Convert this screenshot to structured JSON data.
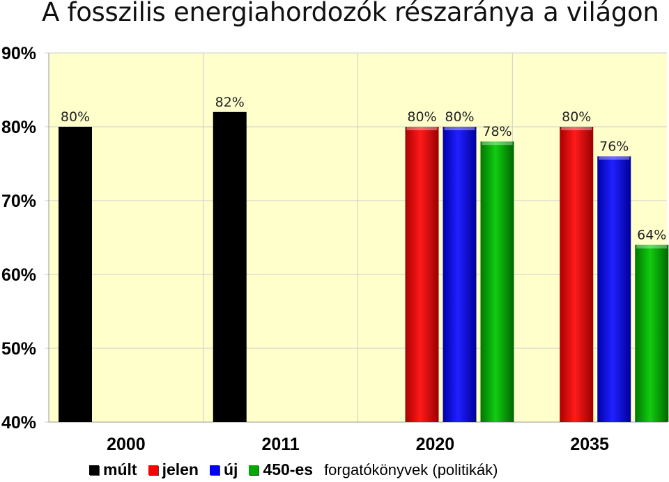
{
  "title": "A fosszilis energiahordozók részaránya a világon",
  "colors": {
    "plot_bg": "#FFFFCC",
    "mult": "#000000",
    "jelen": "#FF0000",
    "uj": "#0000FF",
    "450-es": "#00AA00",
    "gridline": "#CCCCCC"
  },
  "chart_data": {
    "type": "bar",
    "categories": [
      "2000",
      "2011",
      "2020",
      "2035"
    ],
    "series": [
      {
        "name": "múlt",
        "color_key": "mult",
        "values": [
          80,
          82,
          null,
          null
        ]
      },
      {
        "name": "jelen",
        "color_key": "jelen",
        "values": [
          null,
          null,
          80,
          80
        ]
      },
      {
        "name": "új",
        "color_key": "uj",
        "values": [
          null,
          null,
          80,
          76
        ]
      },
      {
        "name": "450-es",
        "color_key": "450-es",
        "values": [
          null,
          null,
          78,
          64
        ]
      }
    ],
    "data_labels": [
      [
        "80%",
        "82%",
        null,
        null
      ],
      [
        null,
        null,
        "80%",
        "80%"
      ],
      [
        null,
        null,
        "80%",
        "76%"
      ],
      [
        null,
        null,
        "78%",
        "64%"
      ]
    ],
    "yticks": [
      "40%",
      "50%",
      "60%",
      "70%",
      "80%",
      "90%"
    ],
    "ytick_values": [
      40,
      50,
      60,
      70,
      80,
      90
    ],
    "ylim": [
      40,
      90
    ],
    "grid": true,
    "legend_position": "bottom",
    "legend_caption": "forgatókönyvek (politikák)"
  }
}
